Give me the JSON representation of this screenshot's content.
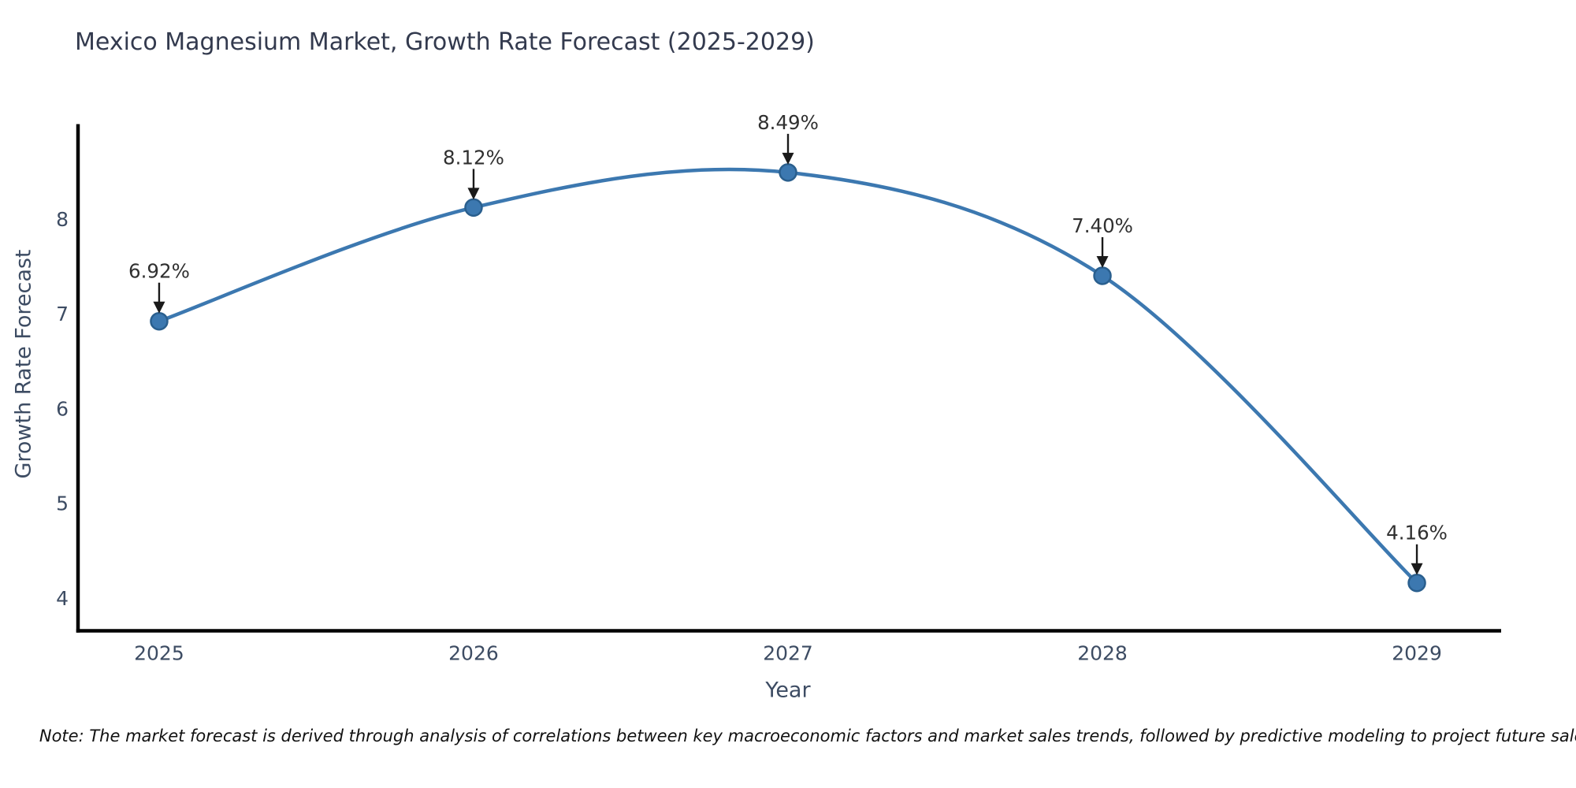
{
  "figure": {
    "note": "Note: The market forecast is derived through analysis of correlations between key macroeconomic factors and market sales trends, followed by predictive modeling to project future sales."
  },
  "chart_data": {
    "type": "line",
    "title": "Mexico Magnesium Market, Growth Rate Forecast (2025-2029)",
    "xlabel": "Year",
    "ylabel": "Growth Rate Forecast",
    "x": [
      2025,
      2026,
      2027,
      2028,
      2029
    ],
    "values": [
      6.92,
      8.12,
      8.49,
      7.4,
      4.16
    ],
    "point_labels": [
      "6.92%",
      "8.12%",
      "8.49%",
      "7.40%",
      "4.16%"
    ],
    "xticks": [
      "2025",
      "2026",
      "2027",
      "2028",
      "2029"
    ],
    "yticks": [
      4,
      5,
      6,
      7,
      8
    ],
    "xlim": [
      2024.742,
      2029.268
    ],
    "ylim": [
      3.655,
      9.0
    ],
    "grid": false,
    "legend": "none",
    "annotation_style": "down-arrow",
    "colors": {
      "line": "#3c78b0",
      "marker_fill": "#3c78b0",
      "marker_edge": "#2a5f8e",
      "axis": "#000000",
      "title": "#333a4e",
      "axis_label": "#3d4c63",
      "tick_label": "#3d4c63",
      "annotation_text": "#303030",
      "annotation_arrow": "#1a1a1a",
      "note": "#111111"
    }
  }
}
